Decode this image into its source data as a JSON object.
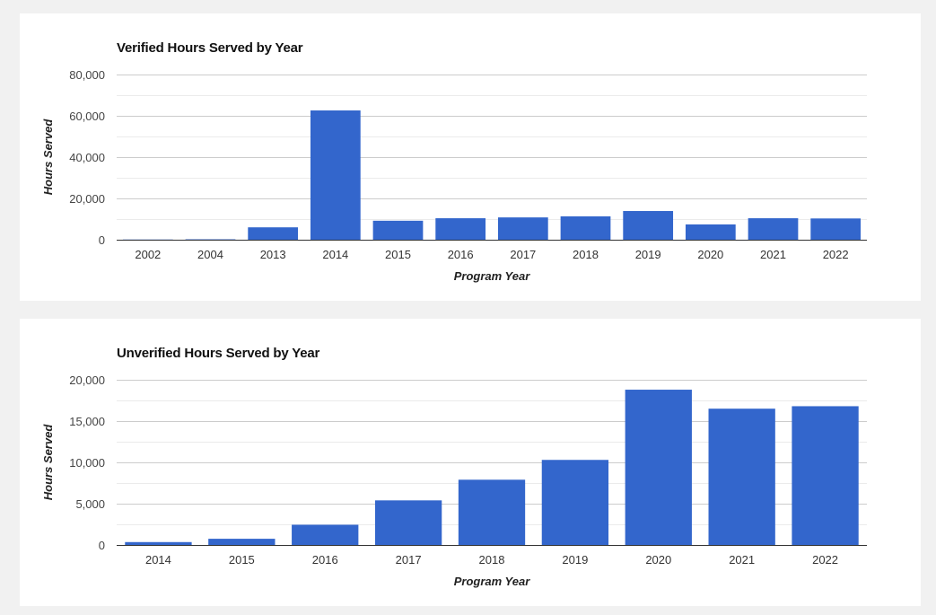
{
  "chart_data": [
    {
      "type": "bar",
      "title": "Verified Hours Served by Year",
      "xlabel": "Program Year",
      "ylabel": "Hours Served",
      "ylim": [
        0,
        80000
      ],
      "yticks": [
        0,
        20000,
        40000,
        60000,
        80000
      ],
      "ytick_labels": [
        "0",
        "20,000",
        "40,000",
        "60,000",
        "80,000"
      ],
      "grid": true,
      "bar_color": "#3366cc",
      "categories": [
        "2002",
        "2004",
        "2013",
        "2014",
        "2015",
        "2016",
        "2017",
        "2018",
        "2019",
        "2020",
        "2021",
        "2022"
      ],
      "values": [
        100,
        200,
        6000,
        62600,
        9200,
        10400,
        10800,
        11300,
        13900,
        7400,
        10400,
        10300
      ]
    },
    {
      "type": "bar",
      "title": "Unverified Hours Served by Year",
      "xlabel": "Program Year",
      "ylabel": "Hours Served",
      "ylim": [
        0,
        20000
      ],
      "yticks": [
        0,
        5000,
        10000,
        15000,
        20000
      ],
      "ytick_labels": [
        "0",
        "5,000",
        "10,000",
        "15,000",
        "20,000"
      ],
      "grid": true,
      "bar_color": "#3366cc",
      "categories": [
        "2014",
        "2015",
        "2016",
        "2017",
        "2018",
        "2019",
        "2020",
        "2021",
        "2022"
      ],
      "values": [
        350,
        750,
        2450,
        5400,
        7900,
        10300,
        18800,
        16500,
        16800
      ]
    }
  ]
}
